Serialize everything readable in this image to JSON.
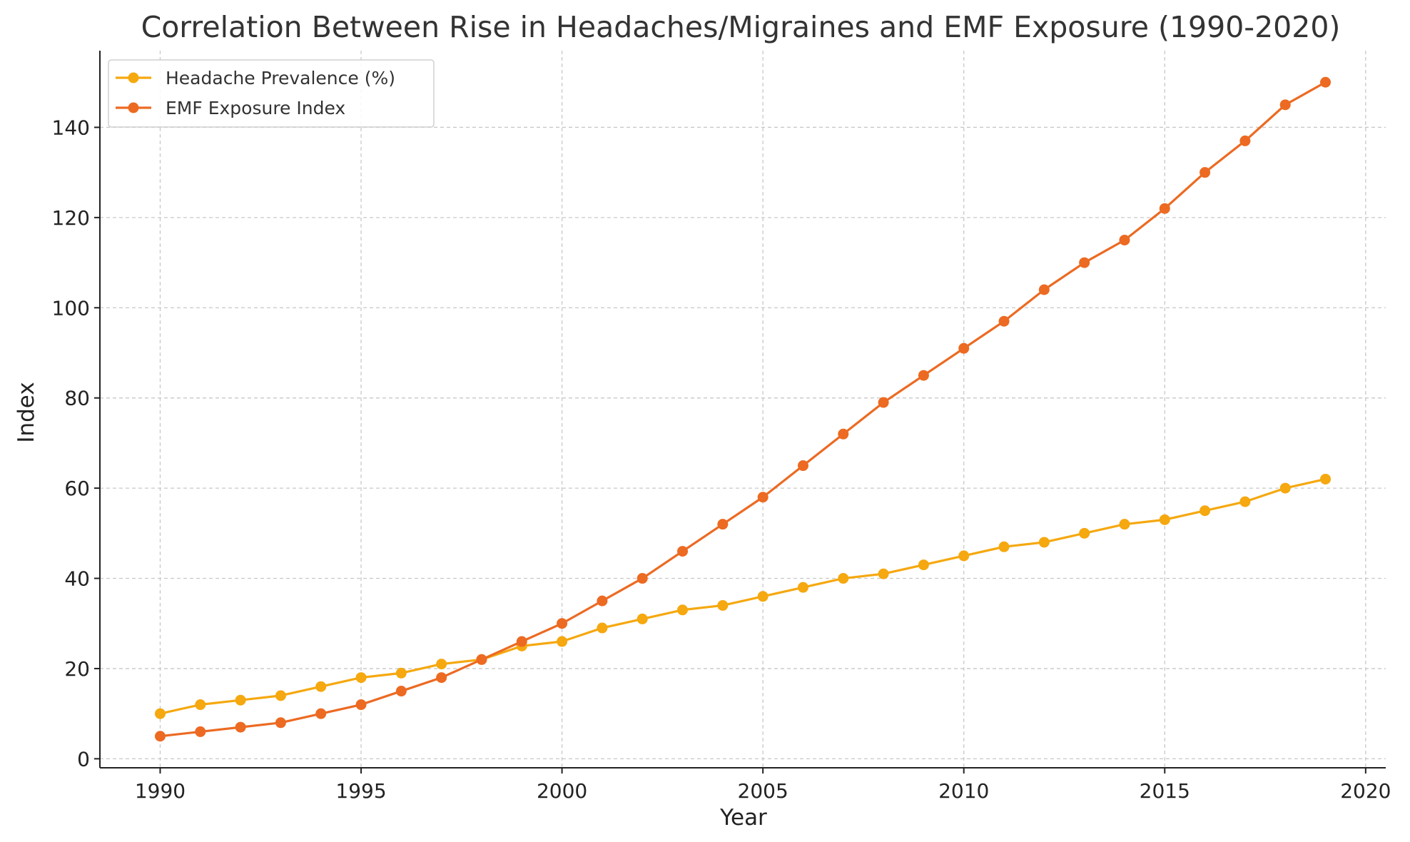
{
  "chart_data": {
    "type": "line",
    "title": "Correlation Between Rise in Headaches/Migraines and EMF Exposure (1990-2020)",
    "xlabel": "Year",
    "ylabel": "Index",
    "xlim": [
      1988.5,
      2020.5
    ],
    "ylim": [
      -2,
      157
    ],
    "x_ticks": [
      1990,
      1995,
      2000,
      2005,
      2010,
      2015,
      2020
    ],
    "y_ticks": [
      0,
      20,
      40,
      60,
      80,
      100,
      120,
      140
    ],
    "grid": true,
    "legend_position": "top-left",
    "x": [
      1990,
      1991,
      1992,
      1993,
      1994,
      1995,
      1996,
      1997,
      1998,
      1999,
      2000,
      2001,
      2002,
      2003,
      2004,
      2005,
      2006,
      2007,
      2008,
      2009,
      2010,
      2011,
      2012,
      2013,
      2014,
      2015,
      2016,
      2017,
      2018,
      2019
    ],
    "series": [
      {
        "name": "Headache Prevalence (%)",
        "color": "#F5A80F",
        "values": [
          10,
          12,
          13,
          14,
          16,
          18,
          19,
          21,
          22,
          25,
          26,
          29,
          31,
          33,
          34,
          36,
          38,
          40,
          41,
          43,
          45,
          47,
          48,
          50,
          52,
          53,
          55,
          57,
          60,
          62
        ]
      },
      {
        "name": "EMF Exposure Index",
        "color": "#EC6A22",
        "values": [
          5,
          6,
          7,
          8,
          10,
          12,
          15,
          18,
          22,
          26,
          30,
          35,
          40,
          46,
          52,
          58,
          65,
          72,
          79,
          85,
          91,
          97,
          104,
          110,
          115,
          122,
          130,
          137,
          145,
          150
        ]
      }
    ]
  }
}
